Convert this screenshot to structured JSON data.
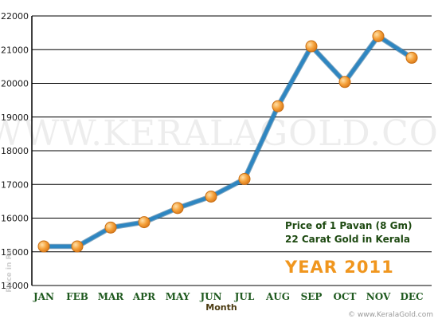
{
  "chart_data": {
    "type": "line",
    "categories": [
      "JAN",
      "FEB",
      "MAR",
      "APR",
      "MAY",
      "JUN",
      "JUL",
      "AUG",
      "SEP",
      "OCT",
      "NOV",
      "DEC"
    ],
    "series": [
      {
        "values": [
          15160,
          15160,
          15720,
          15880,
          16300,
          16640,
          17160,
          19320,
          21100,
          20040,
          21400,
          20760
        ]
      }
    ],
    "yticks": [
      "14000",
      "15000",
      "16000",
      "17000",
      "18000",
      "19000",
      "20000",
      "21000",
      "22000"
    ],
    "ylim": [
      14000,
      22000
    ],
    "xlabel": "Month",
    "ylabel": "Price in Rs",
    "grid": true,
    "line_color": "#2e86c1",
    "marker_color": "#f39c2d"
  },
  "annotations": {
    "line1": "Price of 1 Pavan (8 Gm)",
    "line2": "22 Carat Gold in Kerala",
    "year": "YEAR 2011"
  },
  "watermark": "WWW.KERALAGOLD.COM",
  "footer": "© www.KeralaGold.com"
}
